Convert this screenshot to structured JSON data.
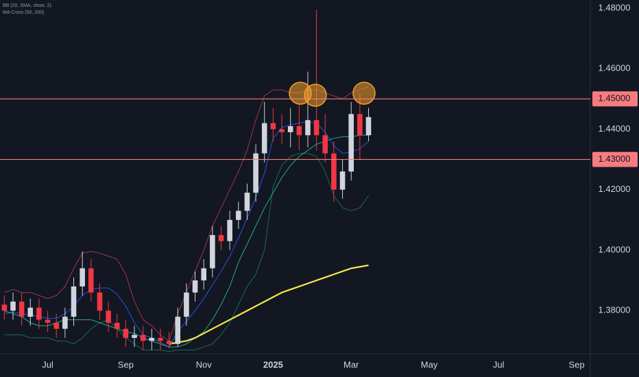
{
  "chart_data": {
    "type": "candlestick",
    "indicators": [
      "BB (20, SMA, close, 2)",
      "MA Cross (50, 200)"
    ],
    "categories": [
      null,
      null,
      null,
      null,
      null,
      "Jul",
      null,
      null,
      null,
      null,
      null,
      null,
      null,
      null,
      "Sep",
      null,
      null,
      null,
      null,
      null,
      null,
      null,
      null,
      "Nov",
      null,
      null,
      null,
      null,
      null,
      null,
      null,
      "2025",
      null,
      null,
      null,
      null,
      null,
      null,
      null,
      null,
      "Mar",
      null,
      null,
      null,
      null,
      null,
      null,
      null,
      null,
      "May",
      null,
      null,
      null,
      null,
      null,
      null,
      null,
      "Jul",
      null,
      null,
      null,
      null,
      null,
      null,
      null,
      null,
      "Sep",
      null
    ],
    "open": [
      1.382,
      1.38,
      1.383,
      1.378,
      1.381,
      1.377,
      1.376,
      1.374,
      1.378,
      1.388,
      1.394,
      1.386,
      1.38,
      1.376,
      1.374,
      1.371,
      1.372,
      1.37,
      1.371,
      1.37,
      1.369,
      1.378,
      1.386,
      1.39,
      1.394,
      1.405,
      1.403,
      1.41,
      1.413,
      1.419,
      1.432,
      1.442,
      1.44,
      1.439,
      1.441,
      1.438,
      1.443,
      1.438,
      1.432,
      1.42,
      1.426,
      1.445,
      1.438,
      null,
      null,
      null,
      null,
      null,
      null,
      null,
      null,
      null,
      null,
      null,
      null,
      null,
      null,
      null,
      null,
      null,
      null,
      null,
      null,
      null,
      null,
      null,
      null,
      null
    ],
    "high": [
      1.385,
      1.386,
      1.386,
      1.384,
      1.384,
      1.38,
      1.379,
      1.381,
      1.391,
      1.3996,
      1.397,
      1.389,
      1.383,
      1.379,
      1.377,
      1.375,
      1.375,
      1.374,
      1.374,
      1.373,
      1.381,
      1.389,
      1.393,
      1.397,
      1.408,
      1.408,
      1.413,
      1.416,
      1.422,
      1.435,
      1.449,
      1.447,
      1.445,
      1.447,
      1.448,
      1.459,
      1.4795,
      1.445,
      1.436,
      1.43,
      1.449,
      1.452,
      1.447,
      null,
      null,
      null,
      null,
      null,
      null,
      null,
      null,
      null,
      null,
      null,
      null,
      null,
      null,
      null,
      null,
      null,
      null,
      null,
      null,
      null,
      null,
      null,
      null,
      null
    ],
    "low": [
      1.377,
      1.377,
      1.375,
      1.375,
      1.374,
      1.373,
      1.371,
      1.371,
      1.375,
      1.385,
      1.383,
      1.377,
      1.373,
      1.371,
      1.368,
      1.368,
      1.367,
      1.367,
      1.367,
      1.3675,
      1.368,
      1.375,
      1.383,
      1.387,
      1.391,
      1.4,
      1.4,
      1.407,
      1.41,
      1.416,
      1.429,
      1.436,
      1.435,
      1.434,
      1.433,
      1.434,
      1.433,
      1.429,
      1.416,
      1.417,
      1.423,
      1.43,
      1.436,
      null,
      null,
      null,
      null,
      null,
      null,
      null,
      null,
      null,
      null,
      null,
      null,
      null,
      null,
      null,
      null,
      null,
      null,
      null,
      null,
      null,
      null,
      null,
      null,
      null
    ],
    "close": [
      1.38,
      1.383,
      1.378,
      1.381,
      1.377,
      1.376,
      1.374,
      1.378,
      1.388,
      1.394,
      1.386,
      1.38,
      1.376,
      1.374,
      1.371,
      1.372,
      1.37,
      1.371,
      1.37,
      1.369,
      1.378,
      1.386,
      1.39,
      1.394,
      1.405,
      1.403,
      1.41,
      1.413,
      1.419,
      1.432,
      1.442,
      1.44,
      1.439,
      1.441,
      1.438,
      1.443,
      1.438,
      1.432,
      1.42,
      1.426,
      1.445,
      1.438,
      1.444,
      null,
      null,
      null,
      null,
      null,
      null,
      null,
      null,
      null,
      null,
      null,
      null,
      null,
      null,
      null,
      null,
      null,
      null,
      null,
      null,
      null,
      null,
      null,
      null,
      null
    ],
    "up_color": "#d1d4dc",
    "down_color": "#f23645",
    "series": [
      {
        "color": "#b2424f",
        "values": [
          1.386,
          1.387,
          1.386,
          1.386,
          1.385,
          1.384,
          1.385,
          1.388,
          1.394,
          1.399,
          1.3996,
          1.399,
          1.398,
          1.397,
          1.392,
          1.383,
          1.377,
          1.375,
          1.372,
          1.37,
          1.379,
          1.386,
          1.393,
          1.4,
          1.408,
          1.414,
          1.42,
          1.426,
          1.433,
          1.443,
          1.451,
          1.453,
          1.453,
          1.452,
          1.452,
          1.453,
          1.453,
          1.452,
          1.451,
          1.45,
          1.452,
          1.453,
          1.454,
          null,
          null,
          null,
          null,
          null,
          null,
          null,
          null,
          null,
          null,
          null,
          null,
          null,
          null,
          null,
          null,
          null,
          null,
          null,
          null,
          null,
          null,
          null,
          null,
          null
        ]
      },
      {
        "color": "#2962ff",
        "values": [
          1.379,
          1.3795,
          1.379,
          1.3785,
          1.378,
          1.3775,
          1.3775,
          1.379,
          1.3815,
          1.385,
          1.387,
          1.3875,
          1.3875,
          1.3855,
          1.3815,
          1.376,
          1.372,
          1.371,
          1.3695,
          1.368,
          1.373,
          1.3765,
          1.38,
          1.384,
          1.3885,
          1.393,
          1.398,
          1.404,
          1.4105,
          1.4175,
          1.4255,
          1.437,
          1.4405,
          1.4415,
          1.442,
          1.4425,
          1.442,
          1.439,
          1.4345,
          1.432,
          1.4325,
          1.4335,
          1.436,
          null,
          null,
          null,
          null,
          null,
          null,
          null,
          null,
          null,
          null,
          null,
          null,
          null,
          null,
          null,
          null,
          null,
          null,
          null,
          null,
          null,
          null,
          null,
          null,
          null
        ]
      },
      {
        "color": "#1b7a5e",
        "values": [
          1.372,
          1.372,
          1.372,
          1.371,
          1.371,
          1.371,
          1.37,
          1.37,
          1.369,
          1.371,
          1.374,
          1.376,
          1.377,
          1.374,
          1.371,
          1.369,
          1.367,
          1.367,
          1.367,
          1.3665,
          1.367,
          1.367,
          1.367,
          1.368,
          1.369,
          1.372,
          1.376,
          1.382,
          1.388,
          1.392,
          1.4,
          1.421,
          1.428,
          1.431,
          1.432,
          1.432,
          1.431,
          1.426,
          1.418,
          1.414,
          1.413,
          1.414,
          1.418,
          null,
          null,
          null,
          null,
          null,
          null,
          null,
          null,
          null,
          null,
          null,
          null,
          null,
          null,
          null,
          null,
          null,
          null,
          null,
          null,
          null,
          null,
          null,
          null,
          null
        ]
      },
      {
        "color": "#26c6a0",
        "values": [
          1.38,
          1.379,
          1.378,
          1.376,
          1.375,
          1.375,
          1.376,
          1.377,
          1.377,
          1.377,
          1.377,
          1.376,
          1.375,
          1.374,
          1.373,
          1.3725,
          1.371,
          1.37,
          1.369,
          1.368,
          1.368,
          1.369,
          1.371,
          1.373,
          1.377,
          1.382,
          1.388,
          1.396,
          1.402,
          1.408,
          1.414,
          1.419,
          1.424,
          1.428,
          1.431,
          1.433,
          1.435,
          1.436,
          1.437,
          1.4375,
          1.4375,
          1.438,
          1.438,
          null,
          null,
          null,
          null,
          null,
          null,
          null,
          null,
          null,
          null,
          null,
          null,
          null,
          null,
          null,
          null,
          null,
          null,
          null,
          null,
          null,
          null,
          null,
          null,
          null
        ]
      },
      {
        "color": "#f5e94a",
        "values": [
          null,
          null,
          null,
          null,
          null,
          null,
          null,
          null,
          null,
          null,
          null,
          null,
          null,
          null,
          null,
          null,
          null,
          null,
          null,
          1.369,
          1.3695,
          1.37,
          1.371,
          1.3725,
          1.374,
          1.3755,
          1.377,
          1.3785,
          1.38,
          1.3815,
          1.383,
          1.3845,
          1.386,
          1.387,
          1.388,
          1.389,
          1.39,
          1.391,
          1.392,
          1.393,
          1.394,
          1.3945,
          1.395,
          null,
          null,
          null,
          null,
          null,
          null,
          null,
          null,
          null,
          null,
          null,
          null,
          null,
          null,
          null,
          null,
          null,
          null,
          null,
          null,
          null,
          null,
          null,
          null,
          null
        ]
      }
    ],
    "hlines": [
      {
        "value": 1.45,
        "label": "1.45000",
        "color": "#f77c80"
      },
      {
        "value": 1.43,
        "label": "1.43000",
        "color": "#f77c80"
      }
    ],
    "ylim": [
      1.366,
      1.4827
    ],
    "yticks": [
      {
        "value": 1.38,
        "label": "1.38000"
      },
      {
        "value": 1.4,
        "label": "1.40000"
      },
      {
        "value": 1.42,
        "label": "1.42000"
      },
      {
        "value": 1.44,
        "label": "1.44000"
      },
      {
        "value": 1.46,
        "label": "1.46000"
      },
      {
        "value": 1.48,
        "label": "1.48000"
      }
    ]
  }
}
